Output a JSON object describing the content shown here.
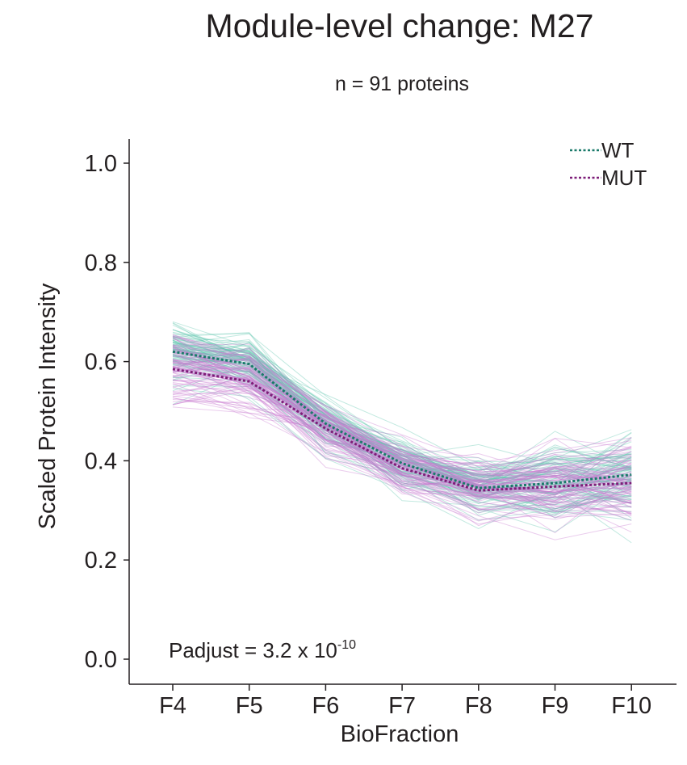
{
  "chart_data": {
    "type": "line",
    "title": "Module-level change: M27",
    "subtitle": "n = 91 proteins",
    "xlabel": "BioFraction",
    "ylabel": "Scaled Protein Intensity",
    "categories": [
      "F4",
      "F5",
      "F6",
      "F7",
      "F8",
      "F9",
      "F10"
    ],
    "ylim": [
      0.0,
      1.0
    ],
    "yticks": [
      "0.0",
      "0.2",
      "0.4",
      "0.6",
      "0.8",
      "1.0"
    ],
    "grid": false,
    "legend_position": "top-right",
    "series": [
      {
        "name": "WT",
        "style": "dotted",
        "color": "#1a7a6a",
        "values": [
          0.62,
          0.595,
          0.475,
          0.395,
          0.345,
          0.355,
          0.372
        ]
      },
      {
        "name": "MUT",
        "style": "dotted",
        "color": "#7d1d78",
        "values": [
          0.585,
          0.56,
          0.465,
          0.385,
          0.34,
          0.348,
          0.355
        ]
      }
    ],
    "individual_proteins": {
      "count": 91,
      "conditions": [
        "WT",
        "MUT"
      ],
      "colors": {
        "WT": "#5fc4ad",
        "MUT": "#c87ad0"
      }
    },
    "annotation": {
      "prefix": "Padjust = 3.2 x 10",
      "exponent": "-10"
    }
  }
}
